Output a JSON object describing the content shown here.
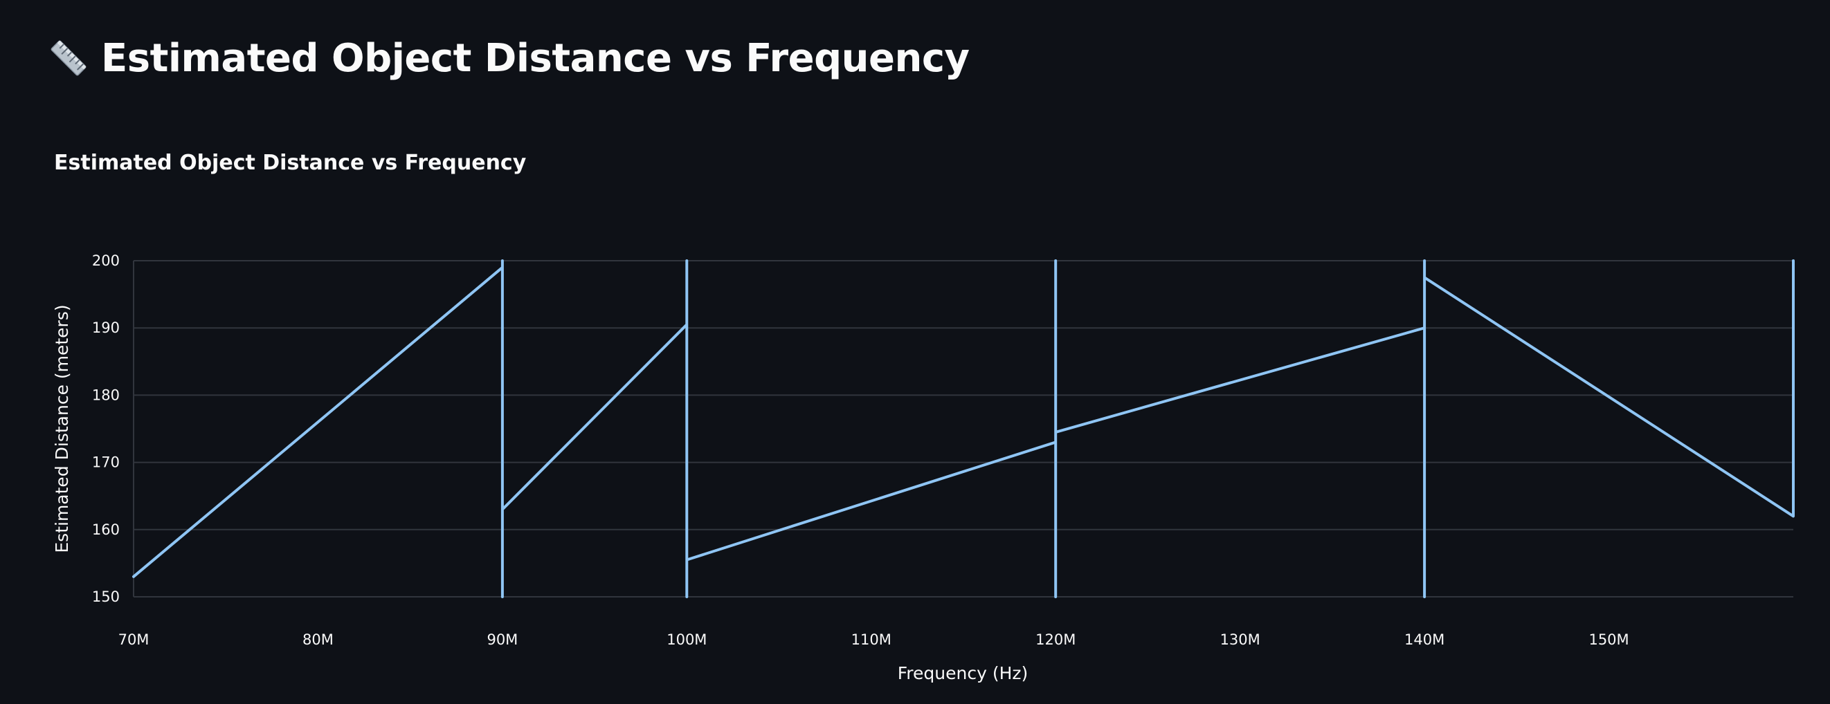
{
  "header": {
    "title": "Estimated Object Distance vs Frequency",
    "icon": "ruler-icon"
  },
  "chart_data": {
    "type": "line",
    "title": "Estimated Object Distance vs Frequency",
    "xlabel": "Frequency (Hz)",
    "ylabel": "Estimated Distance (meters)",
    "xlim": [
      70000000,
      160000000
    ],
    "ylim": [
      150,
      200
    ],
    "x_ticks": [
      {
        "value": 70000000,
        "label": "70M"
      },
      {
        "value": 80000000,
        "label": "80M"
      },
      {
        "value": 90000000,
        "label": "90M"
      },
      {
        "value": 100000000,
        "label": "100M"
      },
      {
        "value": 110000000,
        "label": "110M"
      },
      {
        "value": 120000000,
        "label": "120M"
      },
      {
        "value": 130000000,
        "label": "130M"
      },
      {
        "value": 140000000,
        "label": "140M"
      },
      {
        "value": 150000000,
        "label": "150M"
      }
    ],
    "y_ticks": [
      {
        "value": 150,
        "label": "150"
      },
      {
        "value": 160,
        "label": "160"
      },
      {
        "value": 170,
        "label": "170"
      },
      {
        "value": 180,
        "label": "180"
      },
      {
        "value": 190,
        "label": "190"
      },
      {
        "value": 200,
        "label": "200"
      }
    ],
    "grid": true,
    "line_color": "#8fc5f4",
    "series": [
      {
        "points": [
          [
            70000000,
            153
          ],
          [
            90000000,
            199
          ],
          [
            90000000,
            150
          ],
          [
            90000000,
            200
          ],
          [
            90000000,
            163
          ],
          [
            100000000,
            190.5
          ],
          [
            100000000,
            150
          ],
          [
            100000000,
            200
          ],
          [
            100000000,
            155.5
          ],
          [
            120000000,
            173
          ],
          [
            120000000,
            150
          ],
          [
            120000000,
            200
          ],
          [
            120000000,
            174.5
          ],
          [
            140000000,
            190
          ],
          [
            140000000,
            150
          ],
          [
            140000000,
            200
          ],
          [
            140000000,
            197.5
          ],
          [
            160000000,
            162
          ],
          [
            160000000,
            200
          ]
        ]
      }
    ]
  }
}
